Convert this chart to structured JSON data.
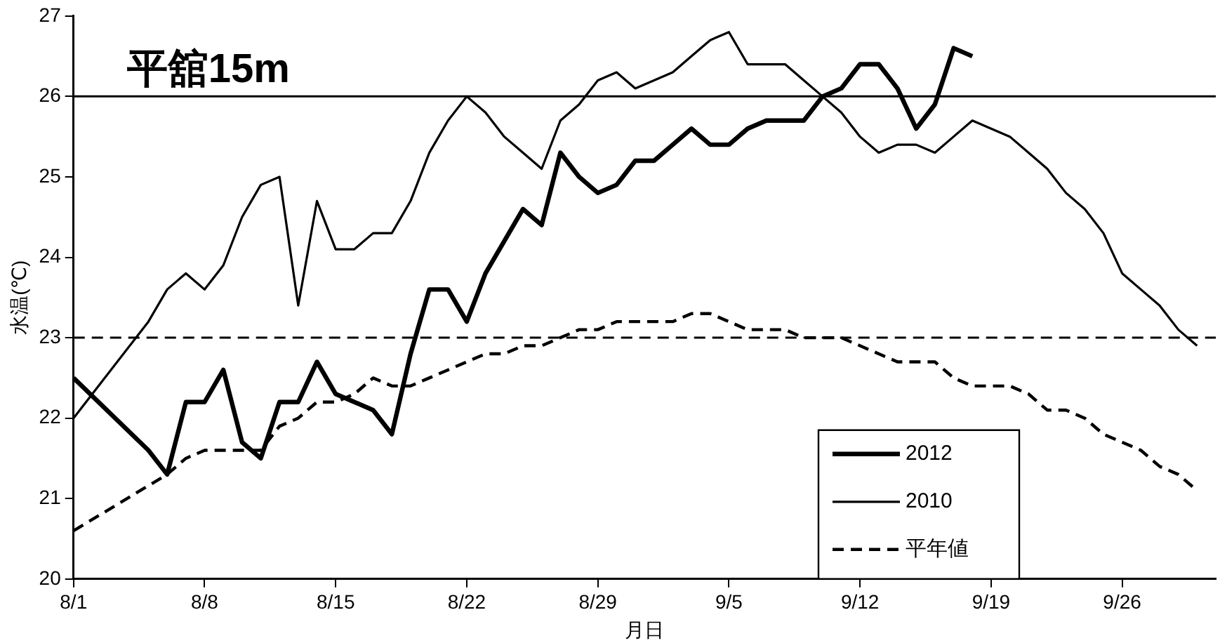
{
  "chart_data": {
    "type": "line",
    "title": "平舘15m",
    "xlabel": "月日",
    "ylabel": "水温(℃)",
    "categories": [
      "8/1",
      null,
      null,
      null,
      null,
      null,
      null,
      "8/8",
      null,
      null,
      null,
      null,
      null,
      null,
      "8/15",
      null,
      null,
      null,
      null,
      null,
      null,
      "8/22",
      null,
      null,
      null,
      null,
      null,
      null,
      "8/29",
      null,
      null,
      null,
      null,
      null,
      null,
      "9/5",
      null,
      null,
      null,
      null,
      null,
      null,
      "9/12",
      null,
      null,
      null,
      null,
      null,
      null,
      "9/19",
      null,
      null,
      null,
      null,
      null,
      null,
      "9/26",
      null,
      null,
      null,
      null,
      null
    ],
    "series": [
      {
        "name": "2012",
        "color": "#000000",
        "line_style": "solid",
        "values": [
          22.5,
          null,
          null,
          null,
          21.6,
          21.3,
          22.2,
          22.2,
          22.6,
          21.7,
          21.5,
          22.2,
          22.2,
          22.7,
          22.3,
          22.2,
          22.1,
          21.8,
          22.8,
          23.6,
          23.6,
          23.2,
          23.8,
          24.2,
          24.6,
          24.4,
          25.3,
          25.0,
          24.8,
          24.9,
          25.2,
          25.2,
          25.4,
          25.6,
          25.4,
          25.4,
          25.6,
          25.7,
          25.7,
          25.7,
          26.0,
          26.1,
          26.4,
          26.4,
          26.1,
          25.6,
          25.9,
          26.6,
          26.5,
          null,
          null,
          null,
          null,
          null,
          null,
          null,
          null,
          null,
          null,
          null,
          null,
          null
        ]
      },
      {
        "name": "2010",
        "color": "#000000",
        "line_style": "solid",
        "values": [
          22.0,
          null,
          null,
          null,
          23.2,
          23.6,
          23.8,
          23.6,
          23.9,
          24.5,
          24.9,
          25.0,
          23.4,
          24.7,
          24.1,
          24.1,
          24.3,
          24.3,
          24.7,
          25.3,
          25.7,
          26.0,
          25.8,
          25.5,
          25.3,
          25.1,
          25.7,
          25.9,
          26.2,
          26.3,
          26.1,
          26.2,
          26.3,
          26.5,
          26.7,
          26.8,
          26.4,
          26.4,
          26.4,
          26.2,
          26.0,
          25.8,
          25.5,
          25.3,
          25.4,
          25.4,
          25.3,
          25.5,
          25.7,
          25.6,
          25.5,
          25.3,
          25.1,
          24.8,
          24.6,
          24.3,
          23.8,
          23.6,
          23.4,
          23.1,
          22.9,
          null
        ]
      },
      {
        "name": "平年値",
        "color": "#000000",
        "line_style": "dashed",
        "values": [
          20.6,
          null,
          null,
          null,
          null,
          21.3,
          21.5,
          21.6,
          21.6,
          21.6,
          21.6,
          21.9,
          22.0,
          22.2,
          22.2,
          22.3,
          22.5,
          22.4,
          22.4,
          22.5,
          22.6,
          22.7,
          22.8,
          22.8,
          22.9,
          22.9,
          23.0,
          23.1,
          23.1,
          23.2,
          23.2,
          23.2,
          23.2,
          23.3,
          23.3,
          23.2,
          23.1,
          23.1,
          23.1,
          23.0,
          23.0,
          23.0,
          22.9,
          22.8,
          22.7,
          22.7,
          22.7,
          22.5,
          22.4,
          22.4,
          22.4,
          22.3,
          22.1,
          22.1,
          22.0,
          21.8,
          21.7,
          21.6,
          21.4,
          21.3,
          21.1,
          null
        ]
      }
    ],
    "ylim": [
      20,
      27
    ],
    "yticks": [
      20,
      21,
      22,
      23,
      24,
      25,
      26,
      27
    ],
    "ref_lines": [
      {
        "axis": "y",
        "value": 26,
        "color": "#000000",
        "line_style": "solid"
      },
      {
        "axis": "y",
        "value": 23,
        "color": "#000000",
        "line_style": "dashed"
      }
    ],
    "grid": false,
    "legend": "bottom right",
    "marker": "none"
  }
}
